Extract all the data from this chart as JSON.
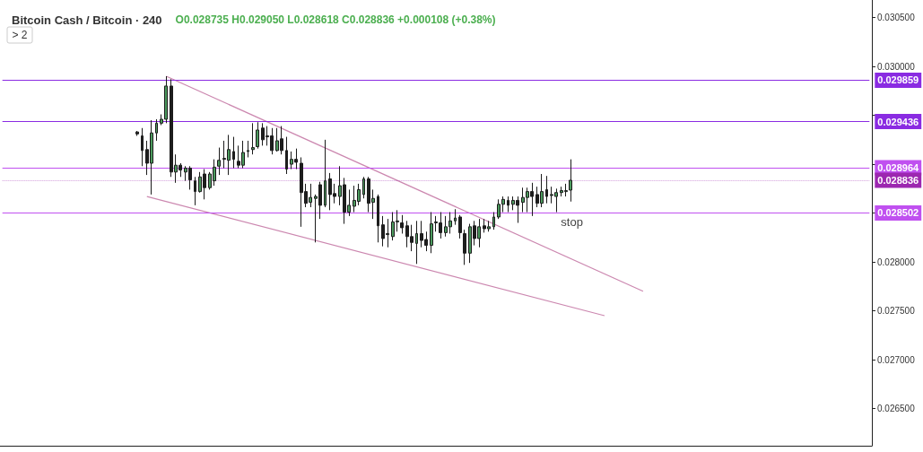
{
  "chart_data": {
    "type": "candlestick",
    "title": "Bitcoin Cash / Bitcoin · 240",
    "subtitle": "O0.028735 H0.029050 L0.028618 C0.028836 +0.000108 (+0.38%)",
    "annotations": [
      "> 2",
      {
        "text": "stop",
        "y": 0.028502
      }
    ],
    "categories": [
      null,
      null,
      null,
      null,
      null,
      null,
      null,
      null,
      null,
      null,
      null,
      null,
      null,
      null,
      null,
      null,
      null,
      null,
      null,
      null,
      null,
      null,
      null,
      null,
      null,
      null,
      null,
      null,
      null,
      null,
      null,
      null,
      null,
      null,
      null,
      null,
      null,
      null,
      null,
      null,
      null,
      null,
      null,
      null,
      null,
      null,
      null,
      null,
      null,
      null,
      null,
      null,
      null,
      null,
      null,
      null,
      null,
      null,
      null,
      null,
      null,
      null,
      null,
      null,
      null,
      null,
      null,
      null,
      null,
      null,
      null,
      null,
      null,
      null,
      null,
      null,
      null,
      null,
      null,
      null,
      null,
      null,
      null,
      null,
      null,
      null,
      null,
      null,
      null,
      null,
      null,
      null,
      null,
      null,
      null,
      null,
      null,
      null,
      null,
      null,
      null,
      null,
      null,
      null,
      null,
      null,
      null,
      null,
      null,
      null,
      null,
      null,
      null,
      null,
      null,
      null,
      null,
      null,
      null,
      null,
      null,
      null,
      null,
      null,
      null,
      null,
      null,
      null,
      null,
      null,
      null,
      null,
      null,
      null,
      null,
      null,
      null,
      null,
      null,
      null,
      null,
      null,
      null,
      null,
      null,
      null,
      null,
      null,
      null,
      null,
      null,
      null,
      null,
      null,
      null,
      null,
      null,
      null,
      null,
      null,
      null,
      null,
      null,
      null,
      null,
      null,
      null,
      null,
      null,
      null,
      null,
      null,
      null,
      null,
      null,
      null,
      null,
      null,
      null,
      null,
      null
    ],
    "colors": [
      null,
      null,
      null,
      null,
      null,
      null,
      null,
      null,
      null,
      null,
      null,
      null,
      null,
      null,
      null,
      null,
      null,
      null,
      null,
      null,
      null,
      null,
      null,
      null,
      null,
      null,
      null,
      null,
      "#1e1e1e",
      "#1e1e1e",
      "#1e1e1e",
      "#4c9a5e",
      "#4c9a5e",
      "#4c9a5e",
      "#4c9a5e",
      "#1e1e1e",
      "#4c9a5e",
      "#1e1e1e",
      "#4c9a5e",
      "#1e1e1e",
      "#1e1e1e",
      "#4c9a5e",
      "#1e1e1e",
      "#4c9a5e",
      "#4c9a5e",
      "#4c9a5e",
      "#4c9a5e",
      "#4c9a5e",
      "#1e1e1e",
      "#1e1e1e",
      "#4c9a5e",
      "#4c9a5e",
      "#4c9a5e",
      "#4c9a5e",
      "#1e1e1e",
      "#1e1e1e",
      "#1e1e1e",
      "#4c9a5e",
      "#1e1e1e",
      "#1e1e1e",
      "#4c9a5e",
      "#1e1e1e",
      "#1e1e1e",
      "#1e1e1e",
      "#4c9a5e",
      "#4c9a5e",
      "#1e1e1e",
      "#4c9a5e",
      "#1e1e1e",
      "#1e1e1e",
      "#4c9a5e",
      "#1e1e1e",
      "#4c9a5e",
      "#4c9a5e",
      "#4c9a5e",
      "#4c9a5e",
      "#1e1e1e",
      "#4c9a5e",
      "#1e1e1e",
      "#1e1e1e",
      "#4c9a5e",
      "#4c9a5e",
      "#4c9a5e",
      "#1e1e1e",
      "#1e1e1e",
      "#1e1e1e",
      "#4c9a5e",
      "#1e1e1e",
      "#1e1e1e",
      "#4c9a5e",
      "#4c9a5e",
      "#1e1e1e",
      "#4c9a5e",
      "#4c9a5e",
      "#4c9a5e",
      "#1e1e1e",
      "#1e1e1e",
      "#4c9a5e",
      "#1e1e1e",
      "#4c9a5e",
      "#1e1e1e",
      "#4c9a5e",
      "#4c9a5e",
      "#4c9a5e",
      "#4c9a5e",
      "#1e1e1e",
      "#4c9a5e",
      "#1e1e1e",
      "#4c9a5e",
      "#4c9a5e",
      "#1e1e1e",
      "#1e1e1e",
      "#4c9a5e",
      "#1e1e1e",
      "#4c9a5e",
      "#4c9a5e",
      "#4c9a5e",
      "#4c9a5e",
      "#4c9a5e",
      null,
      null,
      null,
      null,
      null,
      null,
      null,
      null,
      null,
      null,
      null,
      null,
      null,
      null,
      null,
      null,
      null,
      null,
      null,
      null,
      null,
      null,
      null,
      null,
      null,
      null,
      null,
      null,
      null,
      null,
      null,
      null,
      null,
      null,
      null,
      null,
      null,
      null,
      null,
      null,
      null,
      null,
      null,
      null,
      null,
      null,
      null,
      null,
      null,
      null,
      null,
      null,
      null,
      null,
      null,
      null,
      null,
      null,
      null,
      null,
      null,
      null
    ],
    "ohlc": [
      null,
      null,
      null,
      null,
      null,
      null,
      null,
      null,
      null,
      null,
      null,
      null,
      null,
      null,
      null,
      null,
      null,
      null,
      null,
      null,
      null,
      null,
      null,
      null,
      null,
      null,
      null,
      null,
      [
        0.02933,
        0.02934,
        0.02929,
        0.02931
      ],
      [
        0.02929,
        0.02937,
        0.02898,
        0.02914
      ],
      [
        0.02915,
        0.02924,
        0.02889,
        0.02901
      ],
      [
        0.02901,
        0.02945,
        0.02869,
        0.02932
      ],
      [
        0.02932,
        0.02946,
        0.02924,
        0.02942
      ],
      [
        0.02942,
        0.02951,
        0.0294,
        0.02946
      ],
      [
        0.02946,
        0.0299,
        0.02942,
        0.0298
      ],
      [
        0.0298,
        0.02987,
        0.02887,
        0.02892
      ],
      [
        0.02892,
        0.0291,
        0.02881,
        0.02899
      ],
      [
        0.02899,
        0.02901,
        0.02887,
        0.02894
      ],
      [
        0.02892,
        0.02898,
        0.02883,
        0.02896
      ],
      [
        0.02896,
        0.02898,
        0.02874,
        0.02884
      ],
      [
        0.02883,
        0.02887,
        0.02858,
        0.02872
      ],
      [
        0.02872,
        0.02892,
        0.02871,
        0.02887
      ],
      [
        0.0289,
        0.02895,
        0.02864,
        0.02876
      ],
      [
        0.02876,
        0.02892,
        0.02874,
        0.0289
      ],
      [
        0.02883,
        0.02905,
        0.02878,
        0.02897
      ],
      [
        0.02898,
        0.02917,
        0.02889,
        0.02904
      ],
      [
        0.02905,
        0.02924,
        0.02896,
        0.02906
      ],
      [
        0.02904,
        0.0293,
        0.02889,
        0.02915
      ],
      [
        0.02913,
        0.02928,
        0.02896,
        0.02905
      ],
      [
        0.02903,
        0.02919,
        0.02896,
        0.02899
      ],
      [
        0.02899,
        0.02924,
        0.02896,
        0.02912
      ],
      [
        0.02913,
        0.02924,
        0.02907,
        0.02914
      ],
      [
        0.02915,
        0.02942,
        0.0291,
        0.02917
      ],
      [
        0.02918,
        0.02943,
        0.02916,
        0.02935
      ],
      [
        0.02937,
        0.02942,
        0.02919,
        0.02925
      ],
      [
        0.02929,
        0.02939,
        0.02919,
        0.02928
      ],
      [
        0.02929,
        0.02937,
        0.0291,
        0.02914
      ],
      [
        0.02914,
        0.02937,
        0.02913,
        0.02924
      ],
      [
        0.02926,
        0.02939,
        0.0291,
        0.02914
      ],
      [
        0.02914,
        0.02928,
        0.0289,
        0.02895
      ],
      [
        0.029,
        0.02913,
        0.02895,
        0.02905
      ],
      [
        0.02905,
        0.02916,
        0.02895,
        0.02902
      ],
      [
        0.02901,
        0.02907,
        0.02836,
        0.02871
      ],
      [
        0.02872,
        0.0288,
        0.02856,
        0.0286
      ],
      [
        0.02861,
        0.0288,
        0.02856,
        0.02866
      ],
      [
        0.02865,
        0.02869,
        0.0282,
        0.02867
      ],
      [
        0.02879,
        0.02882,
        0.02844,
        0.02858
      ],
      [
        0.02858,
        0.02925,
        0.02856,
        0.02883
      ],
      [
        0.02885,
        0.02891,
        0.02853,
        0.02869
      ],
      [
        0.0287,
        0.0288,
        0.0286,
        0.02867
      ],
      [
        0.02867,
        0.02898,
        0.02858,
        0.02878
      ],
      [
        0.02879,
        0.02886,
        0.02839,
        0.02851
      ],
      [
        0.02851,
        0.02874,
        0.02847,
        0.02858
      ],
      [
        0.02857,
        0.02878,
        0.02851,
        0.02863
      ],
      [
        0.02862,
        0.0288,
        0.02858,
        0.02874
      ],
      [
        0.02869,
        0.02887,
        0.02865,
        0.02885
      ],
      [
        0.02885,
        0.02887,
        0.02851,
        0.0286
      ],
      [
        0.02861,
        0.02874,
        0.02844,
        0.02865
      ],
      [
        0.02867,
        0.02869,
        0.0282,
        0.02837
      ],
      [
        0.02838,
        0.02847,
        0.02816,
        0.02824
      ],
      [
        0.02828,
        0.02844,
        0.02815,
        0.02829
      ],
      [
        0.02826,
        0.02851,
        0.02822,
        0.02841
      ],
      [
        0.02841,
        0.02853,
        0.02831,
        0.02842
      ],
      [
        0.0284,
        0.02848,
        0.02829,
        0.02835
      ],
      [
        0.02837,
        0.02842,
        0.02815,
        0.02826
      ],
      [
        0.02826,
        0.02838,
        0.02811,
        0.0282
      ],
      [
        0.02819,
        0.02842,
        0.02798,
        0.02829
      ],
      [
        0.02829,
        0.02842,
        0.02815,
        0.02822
      ],
      [
        0.02823,
        0.02831,
        0.02811,
        0.02817
      ],
      [
        0.02817,
        0.02851,
        0.02809,
        0.02839
      ],
      [
        0.0284,
        0.02847,
        0.02831,
        0.02841
      ],
      [
        0.0284,
        0.02851,
        0.02824,
        0.0283
      ],
      [
        0.0283,
        0.02847,
        0.02826,
        0.02836
      ],
      [
        0.02836,
        0.02851,
        0.02829,
        0.02842
      ],
      [
        0.02842,
        0.02854,
        0.02838,
        0.02845
      ],
      [
        0.02846,
        0.02848,
        0.02824,
        0.0283
      ],
      [
        0.02829,
        0.02833,
        0.02797,
        0.02809
      ],
      [
        0.02809,
        0.02839,
        0.02799,
        0.02836
      ],
      [
        0.02837,
        0.02842,
        0.02817,
        0.02824
      ],
      [
        0.02824,
        0.02844,
        0.02815,
        0.02836
      ],
      [
        0.02837,
        0.02844,
        0.0283,
        0.02834
      ],
      [
        0.02834,
        0.02842,
        0.02831,
        0.02836
      ],
      [
        0.02836,
        0.02851,
        0.02833,
        0.02846
      ],
      [
        0.02846,
        0.02864,
        0.02844,
        0.02859
      ],
      [
        0.02859,
        0.02867,
        0.02851,
        0.02864
      ],
      [
        0.02863,
        0.02867,
        0.02851,
        0.02858
      ],
      [
        0.02859,
        0.02867,
        0.02853,
        0.02863
      ],
      [
        0.02863,
        0.02867,
        0.0284,
        0.02858
      ],
      [
        0.02861,
        0.02876,
        0.02851,
        0.02866
      ],
      [
        0.02866,
        0.02876,
        0.02851,
        0.02872
      ],
      [
        0.02872,
        0.02881,
        0.02847,
        0.02867
      ],
      [
        0.02869,
        0.02877,
        0.02856,
        0.0286
      ],
      [
        0.0286,
        0.0289,
        0.02856,
        0.02872
      ],
      [
        0.02874,
        0.02888,
        0.0286,
        0.02867
      ],
      [
        0.02868,
        0.02877,
        0.0286,
        0.02869
      ],
      [
        0.02867,
        0.02875,
        0.02851,
        0.02871
      ],
      [
        0.02871,
        0.02877,
        0.02867,
        0.02873
      ],
      [
        0.02872,
        0.0288,
        0.02867,
        0.02873
      ],
      [
        0.028735,
        0.02905,
        0.028618,
        0.028836
      ],
      null,
      null,
      null,
      null,
      null,
      null,
      null,
      null,
      null,
      null,
      null,
      null,
      null,
      null,
      null,
      null,
      null,
      null,
      null,
      null,
      null,
      null,
      null,
      null,
      null,
      null,
      null,
      null,
      null,
      null,
      null,
      null,
      null,
      null,
      null,
      null,
      null,
      null,
      null,
      null,
      null,
      null,
      null,
      null,
      null,
      null,
      null,
      null,
      null,
      null,
      null,
      null,
      null,
      null,
      null,
      null,
      null,
      null,
      null,
      null,
      null,
      null
    ],
    "series": [
      {
        "type": "line",
        "color": "#cc88b0",
        "values": [
          null,
          null,
          null,
          null,
          null,
          null,
          null,
          null,
          null,
          null,
          null,
          null,
          null,
          null,
          null,
          null,
          null,
          null,
          null,
          null,
          null,
          null,
          null,
          null,
          null,
          null,
          null,
          null,
          null,
          null,
          null,
          null,
          null,
          null,
          0.0299,
          null,
          null,
          null,
          null,
          null,
          null,
          null,
          null,
          null,
          null,
          null,
          null,
          null,
          null,
          null,
          null,
          null,
          null,
          null,
          null,
          null,
          null,
          null,
          null,
          null,
          null,
          null,
          null,
          null,
          null,
          null,
          null,
          null,
          null,
          null,
          null,
          null,
          null,
          null,
          null,
          null,
          null,
          null,
          null,
          null,
          null,
          null,
          null,
          null,
          null,
          null,
          null,
          null,
          null,
          null,
          null,
          null,
          null,
          null,
          null,
          null,
          null,
          null,
          null,
          null,
          null,
          null,
          null,
          null,
          null,
          null,
          null,
          null,
          null,
          null,
          null,
          null,
          null,
          null,
          null,
          null,
          null,
          null,
          null,
          null,
          null,
          null,
          null,
          null,
          null,
          null,
          null,
          null,
          null,
          null,
          null,
          null,
          null,
          0.0277,
          null,
          null,
          null,
          null,
          null,
          null,
          null,
          null,
          null,
          null,
          null,
          null,
          null,
          null,
          null,
          null,
          null,
          null,
          null,
          null,
          null,
          null,
          null,
          null,
          null,
          null,
          null,
          null,
          null,
          null,
          null,
          null,
          null,
          null,
          null,
          null,
          null,
          null,
          null,
          null,
          null,
          null,
          null,
          null,
          null,
          null,
          null
        ]
      },
      {
        "type": "line",
        "color": "#cc88b0",
        "values": [
          null,
          null,
          null,
          null,
          null,
          null,
          null,
          null,
          null,
          null,
          null,
          null,
          null,
          null,
          null,
          null,
          null,
          null,
          null,
          null,
          null,
          null,
          null,
          null,
          null,
          null,
          null,
          null,
          null,
          null,
          0.02867,
          null,
          null,
          null,
          null,
          null,
          null,
          null,
          null,
          null,
          null,
          null,
          null,
          null,
          null,
          null,
          null,
          null,
          null,
          null,
          null,
          null,
          null,
          null,
          null,
          null,
          null,
          null,
          null,
          null,
          null,
          null,
          null,
          null,
          null,
          null,
          null,
          null,
          null,
          null,
          null,
          null,
          null,
          null,
          null,
          null,
          null,
          null,
          null,
          null,
          null,
          null,
          null,
          null,
          null,
          null,
          null,
          null,
          null,
          null,
          null,
          null,
          null,
          null,
          null,
          null,
          null,
          null,
          null,
          null,
          null,
          null,
          null,
          null,
          null,
          null,
          null,
          null,
          null,
          null,
          null,
          null,
          null,
          null,
          null,
          null,
          null,
          null,
          null,
          null,
          null,
          null,
          null,
          null,
          null,
          0.02745,
          null,
          null,
          null,
          null,
          null,
          null,
          null,
          null,
          null,
          null,
          null,
          null,
          null,
          null,
          null,
          null,
          null,
          null,
          null,
          null,
          null,
          null,
          null,
          null,
          null,
          null,
          null,
          null,
          null,
          null,
          null,
          null,
          null,
          null,
          null,
          null,
          null,
          null,
          null,
          null,
          null,
          null,
          null,
          null,
          null,
          null,
          null,
          null,
          null,
          null,
          null,
          null,
          null,
          null,
          null
        ]
      }
    ],
    "ref_lines": [
      {
        "axis": "y",
        "value": 0.029859,
        "label": "0.029859",
        "color": "#8a2be2"
      },
      {
        "axis": "y",
        "value": 0.029436,
        "label": "0.029436",
        "color": "#8a2be2"
      },
      {
        "axis": "y",
        "value": 0.028964,
        "label": "0.028964",
        "color": "#c050f0"
      },
      {
        "axis": "y",
        "value": 0.028502,
        "label": "0.028502",
        "color": "#c050f0"
      },
      {
        "axis": "y",
        "value": 0.028836,
        "label": "0.028836",
        "color": "#9c27b0",
        "line_style": "dotted"
      }
    ],
    "ylim": [
      0.02612,
      0.03068
    ],
    "yticks": [
      {
        "value": 0.0265,
        "label": "0.026500"
      },
      {
        "value": 0.027,
        "label": "0.027000"
      },
      {
        "value": 0.0275,
        "label": "0.027500"
      },
      {
        "value": 0.028,
        "label": "0.028000"
      },
      {
        "value": 0.0285,
        "label": null
      },
      {
        "value": 0.029,
        "label": null
      },
      {
        "value": 0.0295,
        "label": null
      },
      {
        "value": 0.03,
        "label": "0.030000"
      },
      {
        "value": 0.0305,
        "label": "0.030500"
      }
    ],
    "tick_labels": "y"
  }
}
